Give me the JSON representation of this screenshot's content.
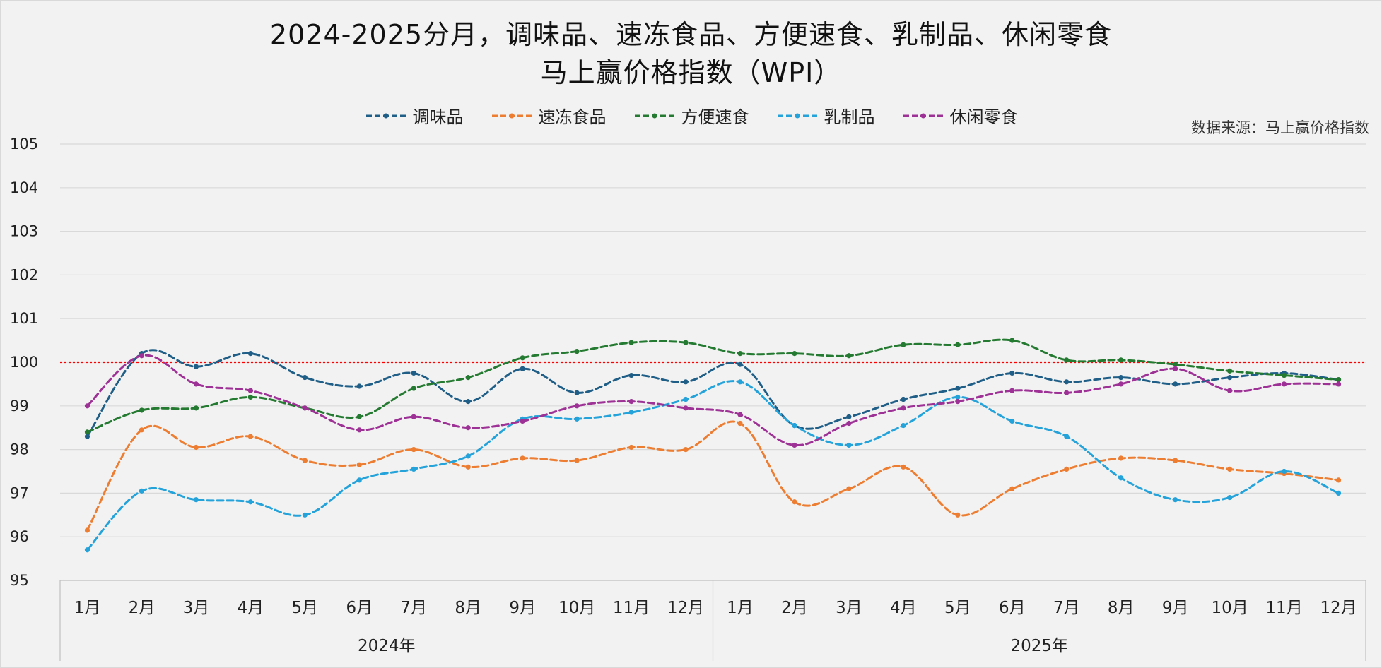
{
  "chart_data": {
    "type": "line",
    "title_line1": "2024-2025分月，调味品、速冻食品、方便速食、乳制品、休闲零食",
    "title_line2": "马上赢价格指数（WPI）",
    "source": "数据来源：马上赢价格指数",
    "ylim": [
      95,
      105
    ],
    "y_ticks": [
      "95",
      "96",
      "97",
      "98",
      "99",
      "100",
      "101",
      "102",
      "103",
      "104",
      "105"
    ],
    "reference_line": 100,
    "reference_color": "#ff0000",
    "categories": [
      "1月",
      "2月",
      "3月",
      "4月",
      "5月",
      "6月",
      "7月",
      "8月",
      "9月",
      "10月",
      "11月",
      "12月",
      "1月",
      "2月",
      "3月",
      "4月",
      "5月",
      "6月",
      "7月",
      "8月",
      "9月",
      "10月",
      "11月",
      "12月"
    ],
    "groups": [
      {
        "label": "2024年",
        "count": 12
      },
      {
        "label": "2025年",
        "count": 12
      }
    ],
    "series": [
      {
        "name": "调味品",
        "color": "#1f5e87",
        "values": [
          98.3,
          100.2,
          99.9,
          100.2,
          99.65,
          99.45,
          99.75,
          99.1,
          99.85,
          99.3,
          99.7,
          99.55,
          99.95,
          98.55,
          98.75,
          99.15,
          99.4,
          99.75,
          99.55,
          99.65,
          99.5,
          99.65,
          99.75,
          99.6
        ]
      },
      {
        "name": "速冻食品",
        "color": "#ed7d31",
        "values": [
          96.15,
          98.45,
          98.05,
          98.3,
          97.75,
          97.65,
          98.0,
          97.6,
          97.8,
          97.75,
          98.05,
          98.0,
          98.6,
          96.8,
          97.1,
          97.6,
          96.5,
          97.1,
          97.55,
          97.8,
          97.75,
          97.55,
          97.45,
          97.3
        ]
      },
      {
        "name": "方便速食",
        "color": "#257a31",
        "values": [
          98.4,
          98.9,
          98.95,
          99.2,
          98.95,
          98.75,
          99.4,
          99.65,
          100.1,
          100.25,
          100.45,
          100.45,
          100.2,
          100.2,
          100.15,
          100.4,
          100.4,
          100.5,
          100.05,
          100.05,
          99.95,
          99.8,
          99.7,
          99.6
        ]
      },
      {
        "name": "乳制品",
        "color": "#24a2da",
        "values": [
          95.7,
          97.05,
          96.85,
          96.8,
          96.5,
          97.3,
          97.55,
          97.85,
          98.7,
          98.7,
          98.85,
          99.15,
          99.55,
          98.55,
          98.1,
          98.55,
          99.2,
          98.65,
          98.3,
          97.35,
          96.85,
          96.9,
          97.5,
          97.0
        ]
      },
      {
        "name": "休闲零食",
        "color": "#9e3195",
        "values": [
          99.0,
          100.15,
          99.5,
          99.35,
          98.95,
          98.45,
          98.75,
          98.5,
          98.65,
          99.0,
          99.1,
          98.95,
          98.8,
          98.1,
          98.6,
          98.95,
          99.1,
          99.35,
          99.3,
          99.5,
          99.85,
          99.35,
          99.5,
          99.5
        ]
      }
    ]
  }
}
